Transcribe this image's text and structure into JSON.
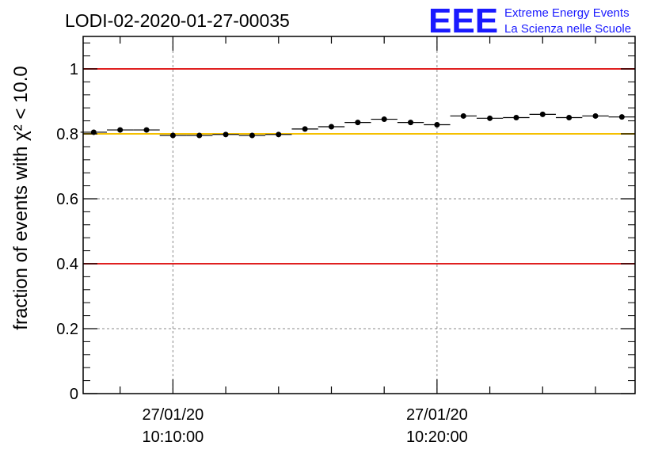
{
  "chart_data": {
    "type": "scatter",
    "title": "LODI-02-2020-01-27-00035",
    "ylabel": "fraction of events with χ² < 10.0",
    "xlabel": "",
    "ylim": [
      0,
      1.1
    ],
    "yticks": [
      0,
      0.2,
      0.4,
      0.6,
      0.8,
      1
    ],
    "ytick_labels": [
      "0",
      "0.2",
      "0.4",
      "0.6",
      "0.8",
      "1"
    ],
    "xlim": [
      -3.4,
      17.5
    ],
    "xticks": [
      {
        "minute": 0,
        "date": "27/01/20",
        "time": "10:10:00"
      },
      {
        "minute": 10,
        "date": "27/01/20",
        "time": "10:20:00"
      }
    ],
    "grid": true,
    "reference_lines": [
      {
        "y": 1.0,
        "color": "#e02020"
      },
      {
        "y": 0.8,
        "color": "#f5c000"
      },
      {
        "y": 0.4,
        "color": "#e02020"
      }
    ],
    "marker_color": "#000000",
    "points": [
      {
        "x": -3.0,
        "y": 0.805
      },
      {
        "x": -2.0,
        "y": 0.812
      },
      {
        "x": -1.0,
        "y": 0.812
      },
      {
        "x": 0.0,
        "y": 0.795
      },
      {
        "x": 1.0,
        "y": 0.795
      },
      {
        "x": 2.0,
        "y": 0.798
      },
      {
        "x": 3.0,
        "y": 0.795
      },
      {
        "x": 4.0,
        "y": 0.798
      },
      {
        "x": 5.0,
        "y": 0.815
      },
      {
        "x": 6.0,
        "y": 0.822
      },
      {
        "x": 7.0,
        "y": 0.835
      },
      {
        "x": 8.0,
        "y": 0.845
      },
      {
        "x": 9.0,
        "y": 0.835
      },
      {
        "x": 10.0,
        "y": 0.828
      },
      {
        "x": 11.0,
        "y": 0.855
      },
      {
        "x": 12.0,
        "y": 0.848
      },
      {
        "x": 13.0,
        "y": 0.85
      },
      {
        "x": 14.0,
        "y": 0.86
      },
      {
        "x": 15.0,
        "y": 0.85
      },
      {
        "x": 16.0,
        "y": 0.855
      },
      {
        "x": 17.0,
        "y": 0.852
      }
    ]
  },
  "logo": {
    "mark": "EEE",
    "line1": "Extreme Energy Events",
    "line2": "La Scienza nelle Scuole"
  }
}
